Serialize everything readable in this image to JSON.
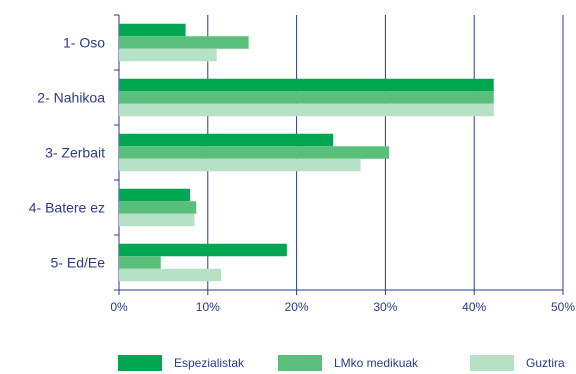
{
  "chart_data": {
    "type": "bar",
    "orientation": "horizontal",
    "categories": [
      "1- Oso",
      "2- Nahikoa",
      "3- Zerbait",
      "4- Batere ez",
      "5- Ed/Ee"
    ],
    "series": [
      {
        "name": "Espezialistak",
        "color": "#00a651",
        "values": [
          7.5,
          42.2,
          24.1,
          8.0,
          18.9
        ]
      },
      {
        "name": "LMko medikuak",
        "color": "#59bf7a",
        "values": [
          14.6,
          42.2,
          30.4,
          8.7,
          4.7
        ]
      },
      {
        "name": "Guztira",
        "color": "#b7e1c4",
        "values": [
          11.0,
          42.2,
          27.2,
          8.5,
          11.5
        ]
      }
    ],
    "xlim": [
      0,
      50
    ],
    "x_ticks": [
      "0%",
      "10%",
      "20%",
      "30%",
      "40%",
      "50%"
    ],
    "grid": "vertical",
    "legend_position": "bottom"
  },
  "colors": {
    "axis": "#2b3a8c",
    "text": "#2b3a8c"
  }
}
